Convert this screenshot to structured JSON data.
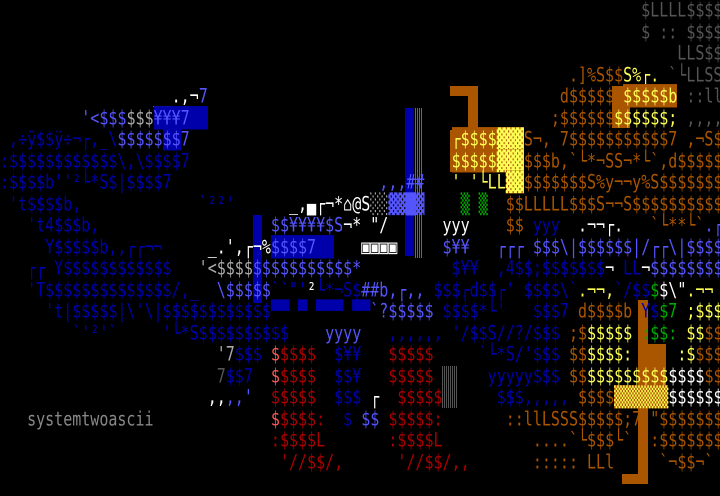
{
  "palette": {
    "B": "#0000aa",
    "L": "#5555ff",
    "G": "#aaaaaa",
    "D": "#555555",
    "W": "#ffffff",
    "Y": "#ffff55",
    "O": "#aa5500",
    "R": "#aa0000",
    "r": "#ff5555",
    "g": "#00aa00",
    "T": "#888888"
  },
  "signature": "systemtwoascii",
  "rows": [
    [
      [
        "                                                                       $LLLL$$$$",
        "D"
      ]
    ],
    [
      [
        "                                                                       $ :: $$$$",
        "D"
      ]
    ],
    [
      [
        "                                                                           LLS$$",
        "D"
      ]
    ],
    [
      [
        "                                                               .]%S$$",
        "O"
      ],
      [
        "S%┌.",
        "Y"
      ],
      [
        " `└LLSS",
        "D"
      ]
    ],
    [
      [
        "                 __.,¬",
        "W"
      ],
      [
        "7",
        "L"
      ],
      [
        "                                       d$$$$$$",
        "O"
      ],
      [
        "$$$$$b",
        "Y",
        "O"
      ],
      [
        " ::llS",
        "D"
      ]
    ],
    [
      [
        "         '<$$$",
        "L"
      ],
      [
        "$$$",
        "G"
      ],
      [
        "¥¥¥7  ",
        "L",
        "B"
      ],
      [
        "                                      ;$$$$$$",
        "O"
      ],
      [
        "$$$$$$;",
        "Y"
      ],
      [
        " ,,,,",
        "D"
      ]
    ],
    [
      [
        " ,÷ÿ$$ÿ÷¬┌,_\\",
        "B"
      ],
      [
        "$$$$$",
        "L"
      ],
      [
        "$$",
        "L",
        "B"
      ],
      [
        "7",
        "L"
      ],
      [
        "                             ",
        "B"
      ],
      [
        "┌$$$$",
        "Y",
        "O"
      ],
      [
        "▓▓▓",
        "Y",
        "O"
      ],
      [
        "S¬, 7$$$$$$$$$$$7 ,¬S$$",
        "O"
      ]
    ],
    [
      [
        ":$$$$$$$$$$$$\\,\\$$$$7",
        "B"
      ],
      [
        "                             ",
        "B"
      ],
      [
        "$$$$$",
        "Y",
        "O"
      ],
      [
        "▓▓▓",
        "Y",
        "O"
      ],
      [
        "$$$b,`└*¬SS¬*└`,d$$$$$",
        "O"
      ]
    ],
    [
      [
        ":$$$$b''²└*S$|$$$$7",
        "B"
      ],
      [
        "                       ,,,##",
        "L"
      ],
      [
        "   ' '└LL",
        "Y"
      ],
      [
        "▓▓",
        "Y",
        "O"
      ],
      [
        "$$$$$$$S%y¬¬y%S$$$$$$$$$",
        "O"
      ]
    ],
    [
      [
        " 't$$$$b,",
        "B"
      ],
      [
        "             `²²'",
        "B"
      ],
      [
        "      _,▄┌¬*⌂@S",
        "W"
      ],
      [
        "░░",
        "G"
      ],
      [
        "▓▓█▓",
        "L"
      ],
      [
        "    ▒",
        "g"
      ],
      [
        " ▒",
        "g"
      ],
      [
        "  $$LLLLL$$$S¬¬S$$$$$$$$$$S¬¬",
        "O"
      ]
    ],
    [
      [
        "   't4$$$b,",
        "B"
      ],
      [
        "                   $$¥¥¥¥$S",
        "L"
      ],
      [
        "¬* \"/",
        "W"
      ],
      [
        "      yyy",
        "W"
      ],
      [
        "    $$",
        "O"
      ],
      [
        " yyy",
        "B"
      ],
      [
        "  .¬¬┌.",
        "W"
      ],
      [
        "   `└**└`",
        "O"
      ],
      [
        ".┌¬",
        "L"
      ]
    ],
    [
      [
        "     Y$$$$$b,,┌┌¬¬",
        "B"
      ],
      [
        "     _.',┌¬%",
        "W"
      ],
      [
        "$$$$7  ",
        "L",
        "B"
      ],
      [
        "   ▣▣▣▣",
        "W"
      ],
      [
        "     $¥¥",
        "L"
      ],
      [
        "   ┌┌┌",
        "L"
      ],
      [
        " $$$\\|$$$$$$|/┌┌\\|$$$$",
        "L"
      ]
    ],
    [
      [
        "   ┌┌ Y$$$$$$$$$$$$",
        "B"
      ],
      [
        "   '<$$$$",
        "G"
      ],
      [
        "$$$$$$$$$$$*",
        "L"
      ],
      [
        "          $¥¥",
        "B"
      ],
      [
        "  ,4$$;$$$$$$$",
        "B"
      ],
      [
        "¬",
        "W"
      ],
      [
        " LL",
        "B"
      ],
      [
        "¬",
        "W"
      ],
      [
        "$$$$$$$$¬",
        "L"
      ]
    ],
    [
      [
        "   'T$$$$$$$$$$$$$$/,_",
        "B"
      ],
      [
        "  \\$$$$$",
        "L"
      ],
      [
        "``\"'",
        "B"
      ],
      [
        "²",
        "W"
      ],
      [
        "└*¬S$",
        "B"
      ],
      [
        "##b,┌,,",
        "L"
      ],
      [
        " $$$┌d$$┌'",
        "B"
      ],
      [
        " $$$$\\`",
        "B"
      ],
      [
        ".¬¬,",
        "Y"
      ],
      [
        "`/$$",
        "B"
      ],
      [
        "$",
        "g"
      ],
      [
        "$\\\"",
        "W"
      ],
      [
        ".¬¬",
        "Y"
      ]
    ],
    [
      [
        "     't|$$$$$|\\'\\|$$$$$$$$$$$$",
        "B"
      ],
      [
        "▀▀ ▀ ▀▀▀ ▀▀",
        "B"
      ],
      [
        "`?$$$$$",
        "L"
      ],
      [
        " $$$$*└'",
        "B"
      ],
      [
        "   $$$7",
        "B"
      ],
      [
        " d$$$$b",
        "O"
      ],
      [
        " Y$",
        "B"
      ],
      [
        "$7",
        "g"
      ],
      [
        " ;$$$",
        "Y"
      ]
    ],
    [
      [
        "        `'²'`",
        "B"
      ],
      [
        "     '└*S$$$$$$$$$$",
        "B"
      ],
      [
        "    yyyy",
        "L"
      ],
      [
        "   ,,,,,,",
        "B"
      ],
      [
        " '/$$S//?/$$$",
        "B"
      ],
      [
        " ;$",
        "O"
      ],
      [
        "$$$$$",
        "Y"
      ],
      [
        " :$$:",
        "g"
      ],
      [
        " $$",
        "Y"
      ],
      [
        "$$",
        "O"
      ]
    ],
    [
      [
        "                        '7",
        "G"
      ],
      [
        "$$$",
        "B"
      ],
      [
        " $",
        "r"
      ],
      [
        "$$$$",
        "R"
      ],
      [
        "  $¥¥",
        "B"
      ],
      [
        "   $$$$$",
        "R"
      ],
      [
        "     `└*S/'",
        "B"
      ],
      [
        "$$$",
        "B"
      ],
      [
        " $$",
        "O"
      ],
      [
        "$$$$",
        "Y"
      ],
      [
        ":",
        "Y"
      ],
      [
        "     :$",
        "Y"
      ],
      [
        "$$$",
        "O"
      ]
    ],
    [
      [
        "                        7",
        "D"
      ],
      [
        "$$7",
        "B"
      ],
      [
        "  $",
        "r"
      ],
      [
        "$$$$",
        "R"
      ],
      [
        "  $$¥",
        "B"
      ],
      [
        "   $$$$$",
        "R"
      ],
      [
        "      yyyyy$$$",
        "B"
      ],
      [
        " $$",
        "O"
      ],
      [
        "$$$$$$$$$",
        "Y"
      ],
      [
        "$$$$",
        "W"
      ],
      [
        "$$",
        "O"
      ]
    ],
    [
      [
        "                       ,,",
        "W"
      ],
      [
        ",,'",
        "L"
      ],
      [
        "  $$$$$",
        "R"
      ],
      [
        "  $$$",
        "B"
      ],
      [
        " ┌",
        "W"
      ],
      [
        "  $$$$$",
        "R"
      ],
      [
        "      $$$,,,,,",
        "B"
      ],
      [
        " $$$$",
        "O"
      ],
      [
        "▒▒▒▒▒▒",
        "Y",
        "O"
      ],
      [
        "$$$$$$",
        "W"
      ],
      [
        "$",
        "Y"
      ]
    ],
    [
      [
        "   ",
        "T"
      ],
      [
        "systemtwoascii",
        "T"
      ],
      [
        "             $",
        "r"
      ],
      [
        "$$$$:",
        "R"
      ],
      [
        "  $",
        "B"
      ],
      [
        " $$",
        "L"
      ],
      [
        " $$$$$:",
        "R"
      ],
      [
        "       ::llLSSS$$$$$;7",
        "O"
      ],
      [
        " \"$$$$$$$",
        "O"
      ]
    ],
    [
      [
        "                              :$$$$L",
        "R"
      ],
      [
        "       :$$$$L",
        "R"
      ],
      [
        "          ....`└$$$└`",
        "O"
      ],
      [
        "  :$$$$$$$",
        "O"
      ]
    ],
    [
      [
        "                               '//$$/,",
        "R"
      ],
      [
        "      '//$$/,,",
        "R"
      ],
      [
        "       ::::: LLl",
        "O"
      ],
      [
        "     `¬$$¬`",
        "O"
      ]
    ],
    []
  ]
}
